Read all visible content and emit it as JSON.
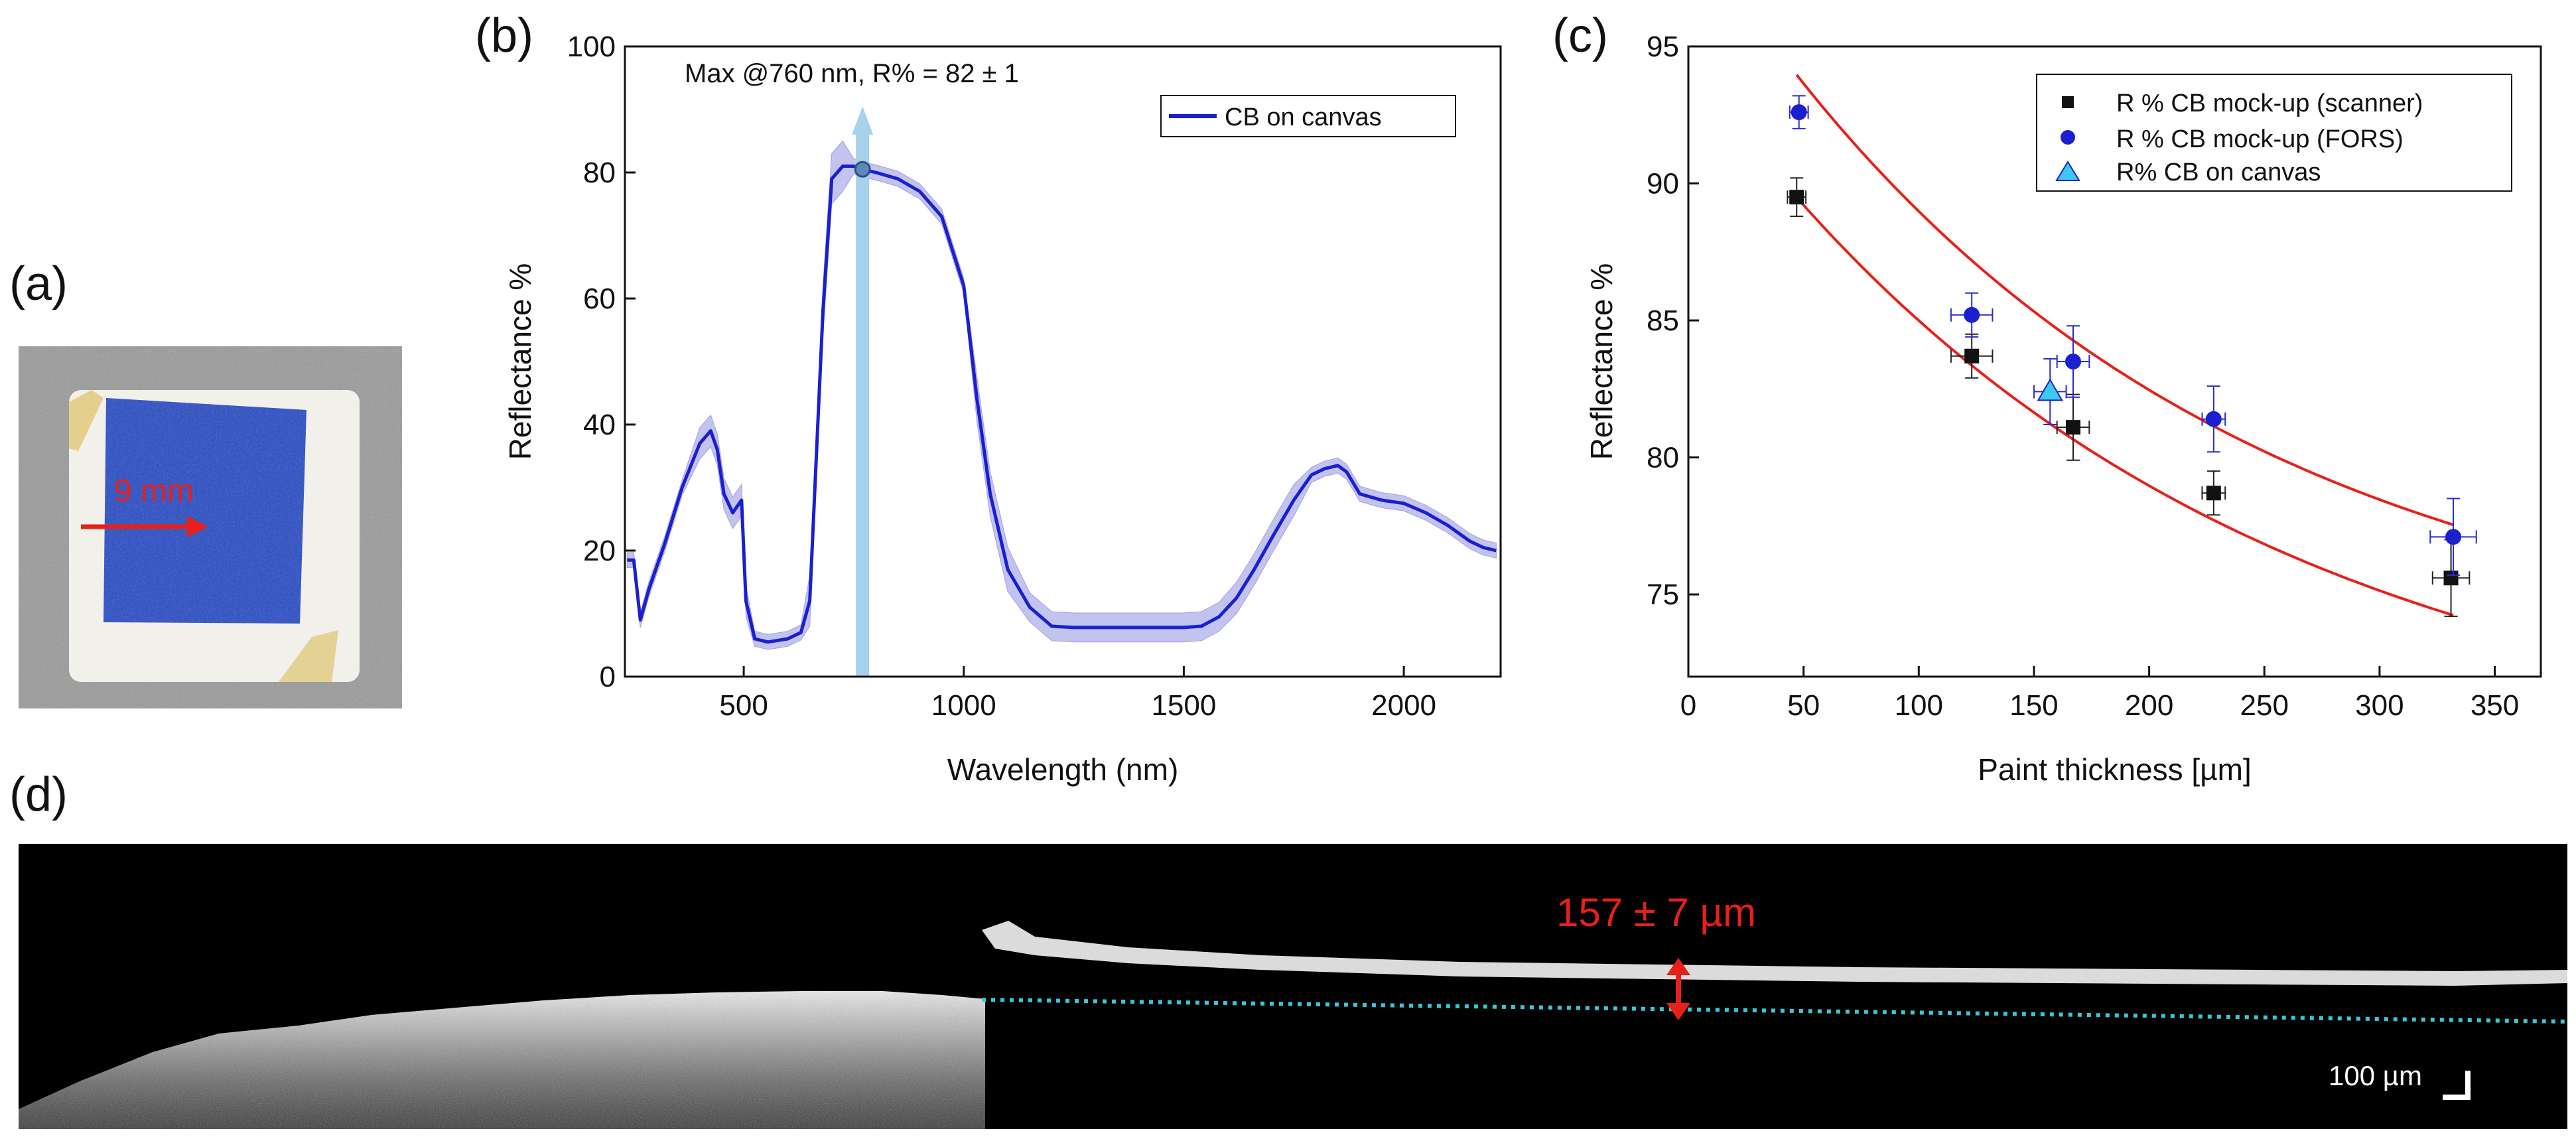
{
  "panels": {
    "a": "(a)",
    "b": "(b)",
    "c": "(c)",
    "d": "(d)"
  },
  "panel_a": {
    "scale_label": "9 mm",
    "paint_color": "#2d4fc4",
    "arrow_color": "#e8201a"
  },
  "panel_d": {
    "thickness_label": "157 ± 7 µm",
    "scalebar_label": "100 µm",
    "baseline_color": "#39c6d6",
    "marker_color": "#e8201a"
  },
  "chart_data": [
    {
      "id": "b",
      "type": "line",
      "xlabel": "Wavelength (nm)",
      "ylabel": "Reflectance %",
      "xlim": [
        230,
        2220
      ],
      "ylim": [
        0,
        100
      ],
      "xticks": [
        500,
        1000,
        1500,
        2000
      ],
      "yticks": [
        0,
        20,
        40,
        60,
        80,
        100
      ],
      "legend": "top-right",
      "annotation": "Max @760 nm, R% = 82 ± 1",
      "marker": {
        "x": 770,
        "y": 80.5
      },
      "series": [
        {
          "name": "CB on canvas",
          "color": "#1a1fd0",
          "x": [
            235,
            250,
            265,
            285,
            320,
            360,
            400,
            425,
            440,
            455,
            475,
            495,
            505,
            525,
            555,
            600,
            630,
            650,
            680,
            700,
            725,
            750,
            770,
            800,
            850,
            900,
            950,
            1000,
            1030,
            1060,
            1100,
            1150,
            1200,
            1250,
            1300,
            1400,
            1500,
            1540,
            1580,
            1620,
            1660,
            1700,
            1750,
            1790,
            1820,
            1850,
            1870,
            1900,
            1950,
            2000,
            2050,
            2100,
            2150,
            2180,
            2210
          ],
          "values": [
            18.5,
            18.5,
            9,
            14,
            21,
            30,
            37,
            39,
            36,
            29,
            26,
            28,
            12,
            6,
            5.5,
            6,
            7,
            12,
            58,
            79,
            81,
            81,
            80.5,
            80,
            79,
            77,
            73,
            62,
            44,
            29,
            17,
            11,
            8,
            7.8,
            7.8,
            7.8,
            7.8,
            8,
            9.5,
            12.5,
            17,
            22,
            28,
            32,
            33,
            33.5,
            32.5,
            29,
            28,
            27.5,
            26,
            24,
            21.5,
            20.5,
            20
          ]
        }
      ]
    },
    {
      "id": "c",
      "type": "scatter",
      "xlabel": "Paint thickness [µm]",
      "ylabel": "Reflectance %",
      "xlim": [
        0,
        370
      ],
      "ylim": [
        72,
        95
      ],
      "xticks": [
        0,
        50,
        100,
        150,
        200,
        250,
        300,
        350
      ],
      "yticks": [
        75,
        80,
        85,
        90,
        95
      ],
      "legend": "top-right",
      "fit_color": "#e8201a",
      "series": [
        {
          "name": "R % CB mock-up (scanner)",
          "marker": "square",
          "color": "#111111",
          "x": [
            47,
            123,
            167,
            228,
            331
          ],
          "values": [
            89.5,
            83.7,
            81.1,
            78.7,
            75.6
          ],
          "yerr": [
            0.7,
            0.8,
            1.2,
            0.8,
            1.4
          ],
          "xerr": [
            4,
            9,
            7,
            5,
            8
          ],
          "fit": {
            "a": 68.5,
            "b": 26.0,
            "c": 0.00455
          }
        },
        {
          "name": "R % CB mock-up (FORS)",
          "marker": "circle",
          "color": "#1a1fd0",
          "x": [
            48,
            123,
            167,
            228,
            332
          ],
          "values": [
            92.6,
            85.2,
            83.5,
            81.4,
            77.1
          ],
          "yerr": [
            0.6,
            0.8,
            1.3,
            1.2,
            1.4
          ],
          "xerr": [
            4,
            9,
            7,
            5,
            10
          ],
          "fit": {
            "a": 72.1,
            "b": 27.5,
            "c": 0.00488
          }
        },
        {
          "name": "R% CB on canvas",
          "marker": "triangle",
          "color": "#3cc8f0",
          "x": [
            157
          ],
          "values": [
            82.4
          ],
          "yerr": [
            1.2
          ],
          "xerr": [
            7
          ]
        }
      ]
    }
  ]
}
